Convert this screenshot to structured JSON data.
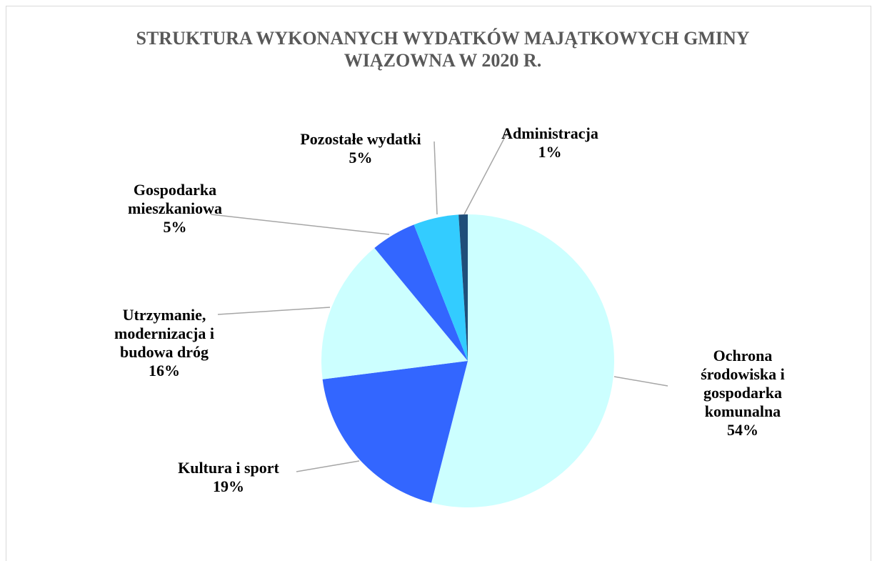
{
  "chart_data": {
    "type": "pie",
    "title": "STRUKTURA WYKONANYCH WYDATKÓW MAJĄTKOWYCH GMINY WIĄZOWNA W 2020 R.",
    "categories": [
      "Ochrona środowiska i gospodarka komunalna",
      "Kultura i sport",
      "Utrzymanie, modernizacja i budowa dróg",
      "Gospodarka mieszkaniowa",
      "Pozostałe wydatki",
      "Administracja"
    ],
    "values": [
      54,
      19,
      16,
      5,
      5,
      1
    ],
    "value_labels": [
      "54%",
      "19%",
      "16%",
      "5%",
      "5%",
      "1%"
    ],
    "colors": [
      "#ccffff",
      "#3366ff",
      "#ccffff",
      "#3366ff",
      "#33ccff",
      "#1f4e79"
    ]
  }
}
